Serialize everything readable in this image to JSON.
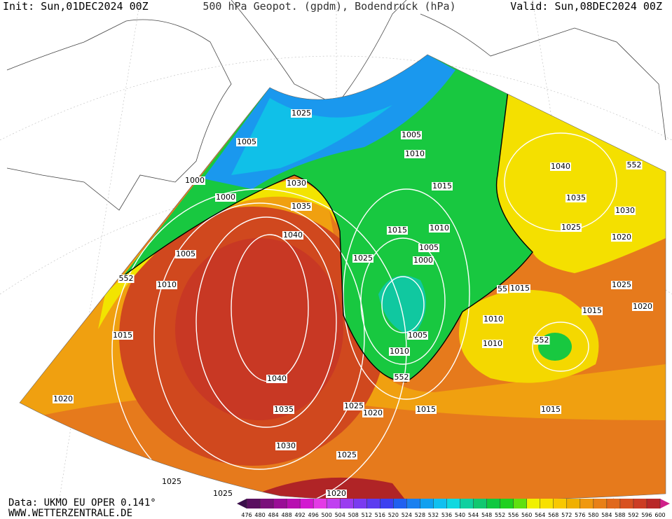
{
  "header": {
    "init": "Init: Sun,01DEC2024 00Z",
    "title": "500 hPa Geopot. (gpdm), Bodendruck (hPa)",
    "valid": "Valid: Sun,08DEC2024 00Z"
  },
  "footer": {
    "source": "Data: UKMO EU OPER 0.141°",
    "website": "WWW.WETTERZENTRALE.DE"
  },
  "map": {
    "contour_labels": [
      "1025",
      "1005",
      "1000",
      "1030",
      "1000",
      "1035",
      "1040",
      "1005",
      "552",
      "1010",
      "1015",
      "1040",
      "1020",
      "1035",
      "1030",
      "1025",
      "1025",
      "1020",
      "1025",
      "1025",
      "1020",
      "552",
      "1015",
      "1010",
      "1005",
      "1000",
      "1005",
      "1015",
      "1010",
      "1015",
      "1025",
      "1010",
      "1005",
      "1040",
      "1035",
      "1030",
      "1025",
      "1020",
      "552",
      "1025",
      "1015",
      "1020",
      "1010",
      "1010",
      "55",
      "1015",
      "552",
      "1015"
    ]
  },
  "legend": {
    "values": [
      476,
      480,
      484,
      488,
      492,
      496,
      500,
      504,
      508,
      512,
      516,
      520,
      524,
      528,
      532,
      536,
      540,
      544,
      548,
      552,
      556,
      560,
      564,
      568,
      572,
      576,
      580,
      584,
      588,
      592,
      596,
      600
    ],
    "colors": [
      "#3a0f4a",
      "#5a1060",
      "#7a0f7a",
      "#9a0d96",
      "#b80fb0",
      "#d21ad0",
      "#e43ae6",
      "#c040f0",
      "#9a3cf0",
      "#7a3af0",
      "#5c3cf0",
      "#3c40f0",
      "#2060f0",
      "#1a80f0",
      "#10a0f0",
      "#10c0f0",
      "#10d8e0",
      "#10d0a0",
      "#10c870",
      "#10c840",
      "#20d020",
      "#60e010",
      "#f0f000",
      "#f8e000",
      "#f8c800",
      "#f0b000",
      "#f09810",
      "#e88018",
      "#e0681c",
      "#d85020",
      "#cc3c24",
      "#b82828",
      "#a01c28",
      "#d0208a"
    ]
  }
}
